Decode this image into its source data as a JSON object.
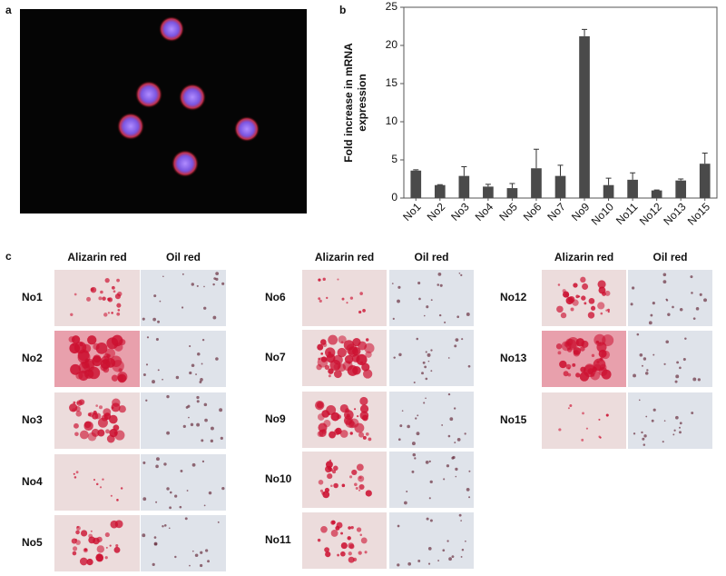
{
  "panel_labels": [
    "a",
    "b",
    "c"
  ],
  "chart_data": {
    "type": "bar",
    "ylabel": [
      "Fold increase in mRNA",
      "expression"
    ],
    "categories": [
      "No1",
      "No2",
      "No3",
      "No4",
      "No5",
      "No6",
      "No7",
      "No9",
      "No10",
      "No11",
      "No12",
      "No13",
      "No15"
    ],
    "values": [
      3.6,
      1.7,
      2.9,
      1.5,
      1.3,
      3.9,
      2.9,
      21.2,
      1.7,
      2.4,
      1.0,
      2.3,
      4.5
    ],
    "errors": [
      0.1,
      0.05,
      1.2,
      0.3,
      0.6,
      2.5,
      1.4,
      0.9,
      0.9,
      0.9,
      0.05,
      0.2,
      1.4
    ],
    "color": "#4a4a4a",
    "ylim": [
      0,
      25
    ],
    "yticks": [
      0,
      5,
      10,
      15,
      20,
      25
    ]
  },
  "panel_c": {
    "groups": [
      {
        "headers": [
          "Alizarin red",
          "Oil red"
        ],
        "rows": [
          "No1",
          "No2",
          "No3",
          "No4",
          "No5"
        ]
      },
      {
        "headers": [
          "Alizarin red",
          "Oil red"
        ],
        "rows": [
          "No6",
          "No7",
          "No9",
          "No10",
          "No11"
        ]
      },
      {
        "headers": [
          "Alizarin red",
          "Oil red"
        ],
        "rows": [
          "No12",
          "No13",
          "No15"
        ]
      }
    ]
  }
}
